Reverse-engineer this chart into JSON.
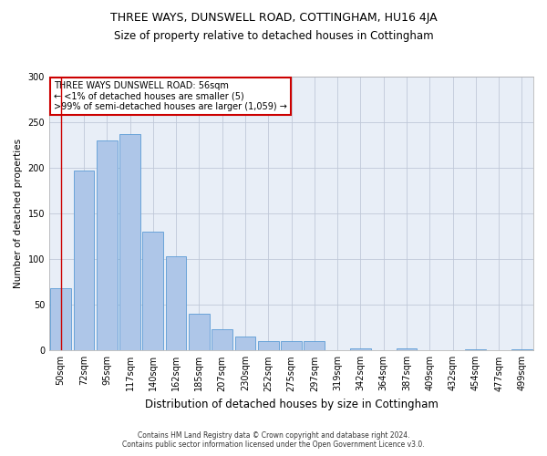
{
  "title_line1": "THREE WAYS, DUNSWELL ROAD, COTTINGHAM, HU16 4JA",
  "title_line2": "Size of property relative to detached houses in Cottingham",
  "xlabel": "Distribution of detached houses by size in Cottingham",
  "ylabel": "Number of detached properties",
  "footer_line1": "Contains HM Land Registry data © Crown copyright and database right 2024.",
  "footer_line2": "Contains public sector information licensed under the Open Government Licence v3.0.",
  "annotation_title": "THREE WAYS DUNSWELL ROAD: 56sqm",
  "annotation_line2": "← <1% of detached houses are smaller (5)",
  "annotation_line3": ">99% of semi-detached houses are larger (1,059) →",
  "bar_color": "#aec6e8",
  "bar_edge_color": "#5b9bd5",
  "annotation_box_color": "#ffffff",
  "annotation_box_edge": "#cc0000",
  "categories": [
    "50sqm",
    "72sqm",
    "95sqm",
    "117sqm",
    "140sqm",
    "162sqm",
    "185sqm",
    "207sqm",
    "230sqm",
    "252sqm",
    "275sqm",
    "297sqm",
    "319sqm",
    "342sqm",
    "364sqm",
    "387sqm",
    "409sqm",
    "432sqm",
    "454sqm",
    "477sqm",
    "499sqm"
  ],
  "values": [
    68,
    197,
    230,
    237,
    130,
    103,
    40,
    23,
    15,
    10,
    10,
    10,
    0,
    2,
    0,
    2,
    0,
    0,
    1,
    0,
    1
  ],
  "ylim": [
    0,
    300
  ],
  "yticks": [
    0,
    50,
    100,
    150,
    200,
    250,
    300
  ],
  "bg_color": "#e8eef7",
  "title1_fontsize": 9,
  "title2_fontsize": 8.5,
  "ylabel_fontsize": 7.5,
  "xlabel_fontsize": 8.5,
  "tick_fontsize": 7,
  "annotation_fontsize": 7,
  "footer_fontsize": 5.5
}
